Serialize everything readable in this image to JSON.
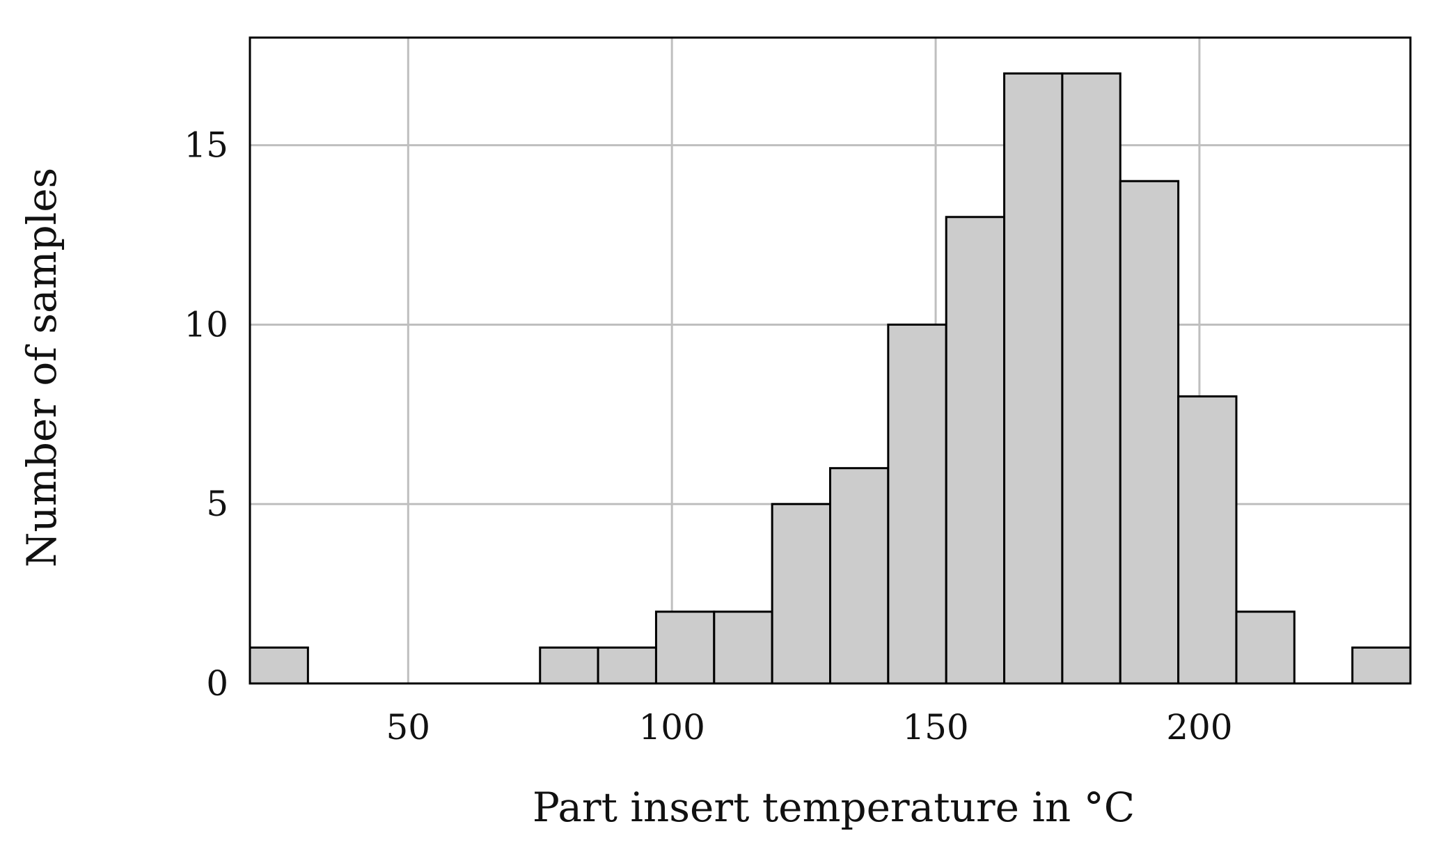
{
  "chart_data": {
    "type": "bar",
    "subtype": "histogram",
    "title": "",
    "xlabel": "Part insert temperature in °C",
    "ylabel": "Number of samples",
    "xlim": [
      20,
      240
    ],
    "ylim": [
      0,
      18
    ],
    "xticks": [
      50,
      100,
      150,
      200
    ],
    "yticks": [
      0,
      5,
      10,
      15
    ],
    "grid": true,
    "legend": "none",
    "colors": {
      "bar_fill": "#cccccc",
      "bar_edge": "#000000",
      "grid": "#bfbfbf"
    },
    "bins": [
      {
        "x0": 20.0,
        "x1": 31.0,
        "count": 1
      },
      {
        "x0": 75.0,
        "x1": 86.0,
        "count": 1
      },
      {
        "x0": 86.0,
        "x1": 97.0,
        "count": 1
      },
      {
        "x0": 97.0,
        "x1": 108.0,
        "count": 2
      },
      {
        "x0": 108.0,
        "x1": 119.0,
        "count": 2
      },
      {
        "x0": 119.0,
        "x1": 130.0,
        "count": 5
      },
      {
        "x0": 130.0,
        "x1": 141.0,
        "count": 6
      },
      {
        "x0": 141.0,
        "x1": 152.0,
        "count": 10
      },
      {
        "x0": 152.0,
        "x1": 163.0,
        "count": 13
      },
      {
        "x0": 163.0,
        "x1": 174.0,
        "count": 17
      },
      {
        "x0": 174.0,
        "x1": 185.0,
        "count": 17
      },
      {
        "x0": 185.0,
        "x1": 196.0,
        "count": 14
      },
      {
        "x0": 196.0,
        "x1": 207.0,
        "count": 8
      },
      {
        "x0": 207.0,
        "x1": 218.0,
        "count": 2
      },
      {
        "x0": 229.0,
        "x1": 240.0,
        "count": 1
      }
    ]
  }
}
